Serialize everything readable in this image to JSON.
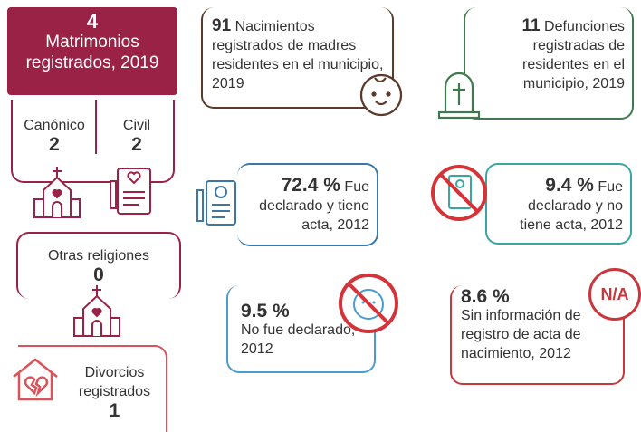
{
  "marriages": {
    "count": "4",
    "label": "Matrimonios registrados, 2019",
    "canonico": {
      "label": "Canónico",
      "count": "2"
    },
    "civil": {
      "label": "Civil",
      "count": "2"
    },
    "otras": {
      "label": "Otras religiones",
      "count": "0"
    }
  },
  "divorces": {
    "label": "Divorcios registrados",
    "count": "1"
  },
  "births": {
    "count": "91",
    "label": "Nacimientos registrados de madres residentes en el municipio, 2019"
  },
  "deaths": {
    "count": "11",
    "label": "Defunciones registradas de residentes en el municipio, 2019"
  },
  "registration": [
    {
      "percent": "72.4 %",
      "label": "Fue declarado y tiene acta, 2012"
    },
    {
      "percent": "9.4 %",
      "label": "Fue declarado y no tiene acta, 2012"
    },
    {
      "percent": "9.5 %",
      "label": "No fue declarado, 2012"
    },
    {
      "percent": "8.6 %",
      "label": "Sin información de registro de acta de nacimiento, 2012",
      "icon": "N/A"
    }
  ]
}
